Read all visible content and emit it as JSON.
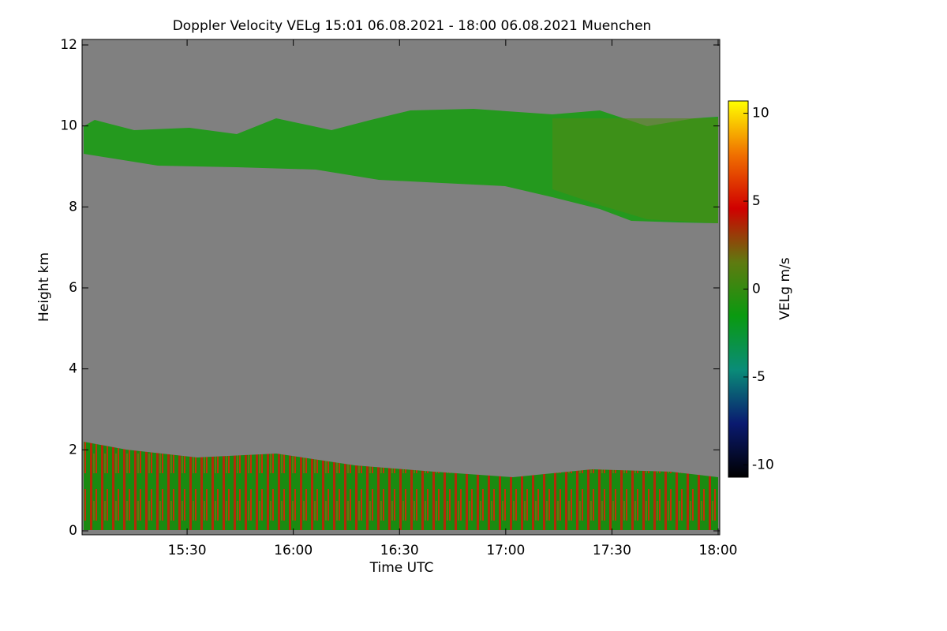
{
  "chart_data": {
    "type": "heatmap",
    "title": "Doppler Velocity VELg   15:01 06.08.2021 - 18:00 06.08.2021 Muenchen",
    "x_label": "Time UTC",
    "y_label": "Height km",
    "xlim": [
      901,
      1080
    ],
    "xticks": [
      {
        "value": 930,
        "label": "15:30"
      },
      {
        "value": 960,
        "label": "16:00"
      },
      {
        "value": 990,
        "label": "16:30"
      },
      {
        "value": 1020,
        "label": "17:00"
      },
      {
        "value": 1050,
        "label": "17:30"
      },
      {
        "value": 1080,
        "label": "18:00"
      }
    ],
    "ylim": [
      0,
      12
    ],
    "yticks": [
      0,
      2,
      4,
      6,
      8,
      10,
      12
    ],
    "background": "#808080",
    "colorbar": {
      "label": "VELg m/s",
      "lim": [
        -10.7,
        10.7
      ],
      "ticks": [
        -10,
        -5,
        0,
        5,
        10
      ],
      "colormap": [
        "#000000",
        "#0a1a70",
        "#0a8c78",
        "#0a9a10",
        "#5f7a10",
        "#d00000",
        "#f07000",
        "#ffff00"
      ]
    }
  }
}
